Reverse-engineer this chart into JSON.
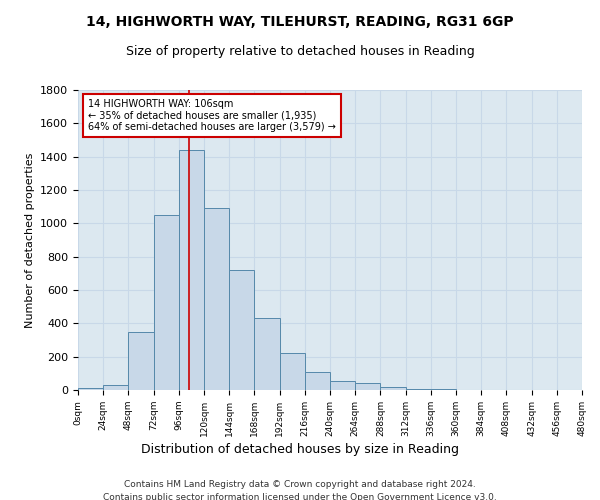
{
  "title1": "14, HIGHWORTH WAY, TILEHURST, READING, RG31 6GP",
  "title2": "Size of property relative to detached houses in Reading",
  "xlabel": "Distribution of detached houses by size in Reading",
  "ylabel": "Number of detached properties",
  "bin_edges": [
    0,
    24,
    48,
    72,
    96,
    120,
    144,
    168,
    192,
    216,
    240,
    264,
    288,
    312,
    336,
    360,
    384,
    408,
    432,
    456,
    480
  ],
  "bar_heights": [
    10,
    30,
    350,
    1050,
    1440,
    1090,
    720,
    430,
    220,
    110,
    55,
    45,
    20,
    5,
    5,
    2,
    0,
    0,
    0,
    0
  ],
  "bar_color": "#c8d8e8",
  "bar_edgecolor": "#5588aa",
  "vline_x": 106,
  "vline_color": "#cc0000",
  "annotation_line1": "14 HIGHWORTH WAY: 106sqm",
  "annotation_line2": "← 35% of detached houses are smaller (1,935)",
  "annotation_line3": "64% of semi-detached houses are larger (3,579) →",
  "annotation_box_facecolor": "white",
  "annotation_box_edgecolor": "#cc0000",
  "ylim": [
    0,
    1800
  ],
  "yticks": [
    0,
    200,
    400,
    600,
    800,
    1000,
    1200,
    1400,
    1600,
    1800
  ],
  "xtick_labels": [
    "0sqm",
    "24sqm",
    "48sqm",
    "72sqm",
    "96sqm",
    "120sqm",
    "144sqm",
    "168sqm",
    "192sqm",
    "216sqm",
    "240sqm",
    "264sqm",
    "288sqm",
    "312sqm",
    "336sqm",
    "360sqm",
    "384sqm",
    "408sqm",
    "432sqm",
    "456sqm",
    "480sqm"
  ],
  "grid_color": "#c8d8e8",
  "background_color": "#dce8f0",
  "footer1": "Contains HM Land Registry data © Crown copyright and database right 2024.",
  "footer2": "Contains public sector information licensed under the Open Government Licence v3.0."
}
